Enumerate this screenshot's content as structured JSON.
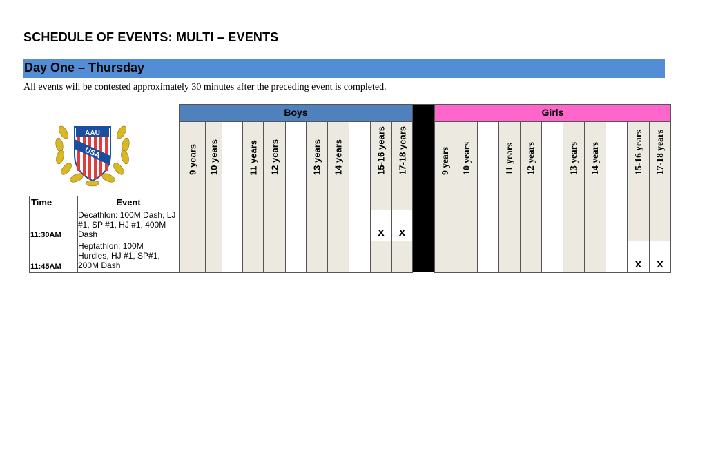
{
  "title": "SCHEDULE OF EVENTS:  MULTI – EVENTS",
  "day_header": "Day One – Thursday",
  "note": "All events will be contested approximately 30 minutes after the preceding event is completed.",
  "logo": {
    "text_top": "AAU",
    "text_band": "USA"
  },
  "colors": {
    "day_band": "#538DD5",
    "boys": "#4F81BD",
    "girls": "#FF66CC",
    "age_cell": "#ECEAE0",
    "divider": "#000000"
  },
  "table": {
    "time_header": "Time",
    "event_header": "Event",
    "boys": {
      "label": "Boys",
      "columns": [
        "9 years",
        "10 years",
        "",
        "11 years",
        "12 years",
        "",
        "13 years",
        "14 years",
        "",
        "15-16 years",
        "17-18 years"
      ]
    },
    "girls": {
      "label": "Girls",
      "columns": [
        "9 years",
        "10 years",
        "",
        "11 years",
        "12 years",
        "",
        "13 years",
        "14 years",
        "",
        "15-16 years",
        "17-18 years"
      ]
    },
    "mark_symbol": "x",
    "rows": [
      {
        "time": "11:30AM",
        "event": "Decathlon: 100M Dash, LJ #1, SP #1,  HJ #1, 400M Dash",
        "boys": [
          false,
          false,
          false,
          false,
          false,
          false,
          false,
          false,
          false,
          true,
          true
        ],
        "girls": [
          false,
          false,
          false,
          false,
          false,
          false,
          false,
          false,
          false,
          false,
          false
        ]
      },
      {
        "time": "11:45AM",
        "event": "Heptathlon:  100M Hurdles, HJ #1, SP#1, 200M Dash",
        "boys": [
          false,
          false,
          false,
          false,
          false,
          false,
          false,
          false,
          false,
          false,
          false
        ],
        "girls": [
          false,
          false,
          false,
          false,
          false,
          false,
          false,
          false,
          false,
          true,
          true
        ]
      }
    ]
  }
}
